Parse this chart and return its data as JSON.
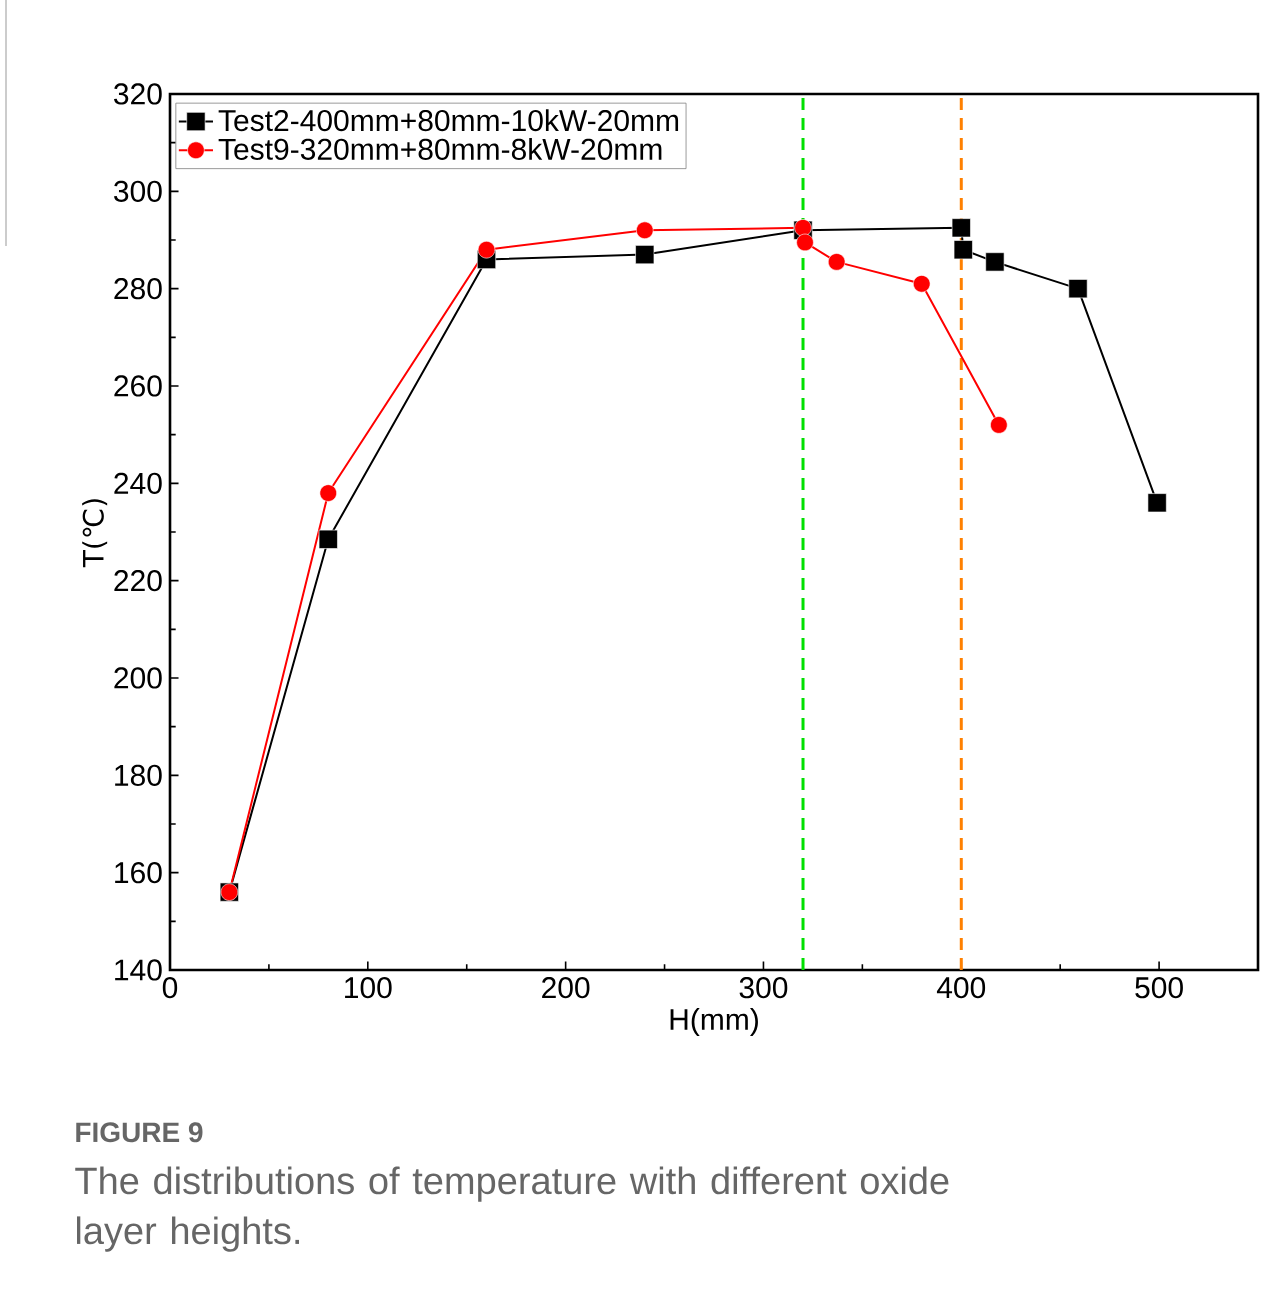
{
  "chart_data": {
    "type": "line",
    "xlabel": "H(mm)",
    "ylabel": "T(℃)",
    "xlim": [
      0,
      550
    ],
    "xticks": [
      0,
      100,
      200,
      300,
      400,
      500
    ],
    "ylim": [
      140,
      320
    ],
    "yticks": [
      140,
      160,
      180,
      200,
      220,
      240,
      260,
      280,
      300,
      320
    ],
    "grid": false,
    "legend": "top left",
    "line_style": "solid",
    "series": [
      {
        "name": "Test2-400mm+80mm-10kW-20mm",
        "color": "#000000",
        "marker": "square",
        "x": [
          30,
          80,
          160,
          240,
          320,
          400,
          401,
          417,
          459,
          499
        ],
        "values": [
          156,
          228.5,
          286,
          287,
          292,
          292.5,
          288,
          285.5,
          280,
          236
        ]
      },
      {
        "name": "Test9-320mm+80mm-8kW-20mm",
        "color": "#ff0000",
        "marker": "circle",
        "x": [
          30,
          80,
          160,
          240,
          320,
          321,
          337,
          380,
          419
        ],
        "values": [
          156,
          238,
          288,
          292,
          292.5,
          289.5,
          285.5,
          281,
          252
        ]
      }
    ],
    "ref_lines": [
      {
        "axis": "x",
        "value": 320,
        "color": "#00e000",
        "line_style": "dashed"
      },
      {
        "axis": "x",
        "value": 400,
        "color": "#ff8000",
        "line_style": "dashed"
      }
    ],
    "annotations": [
      "**FIGURE 9**",
      "The distributions of temperature with different oxide layer heights."
    ]
  }
}
